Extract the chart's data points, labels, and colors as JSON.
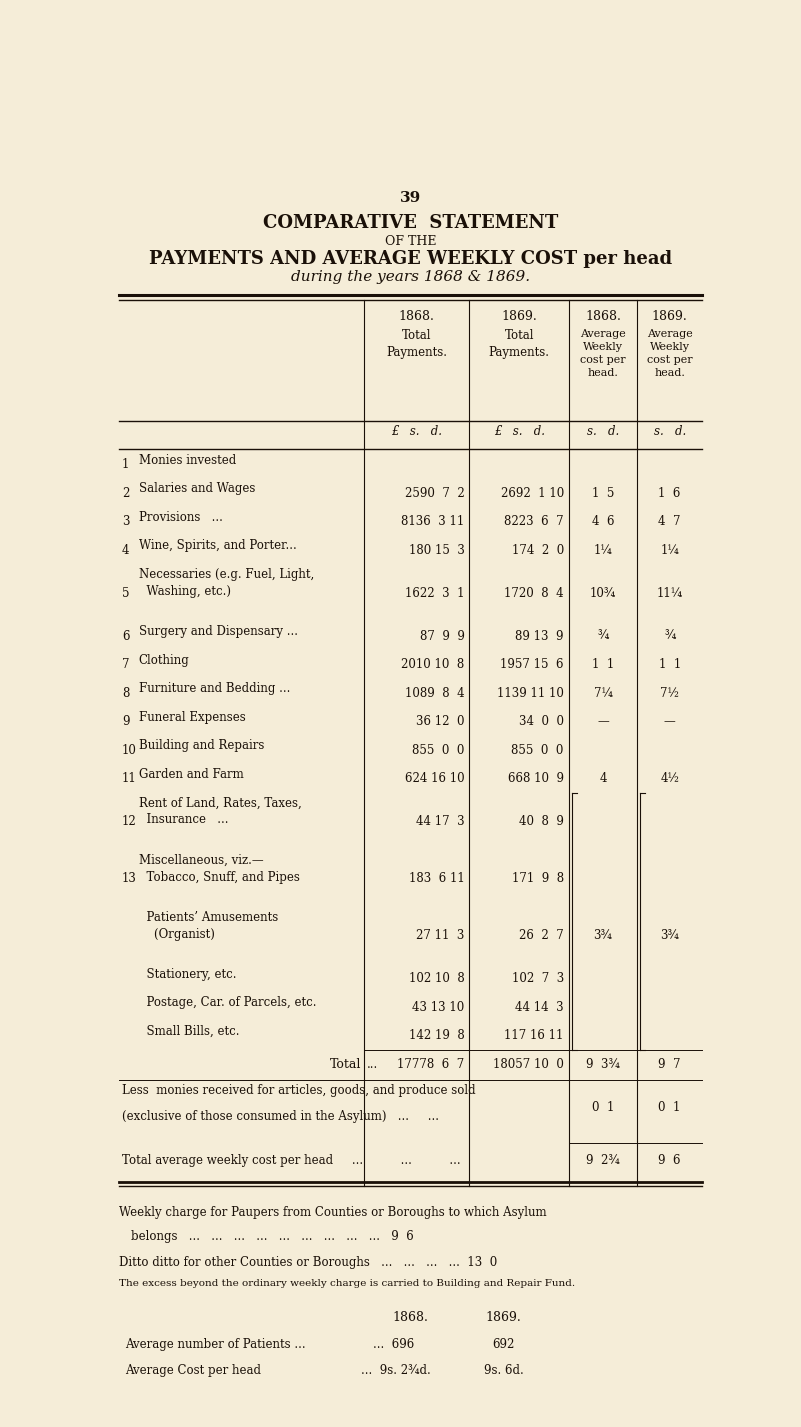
{
  "page_number": "39",
  "title1": "COMPARATIVE  STATEMENT",
  "title2": "OF THE",
  "title3": "PAYMENTS AND AVERAGE WEEKLY COST per head",
  "title4": "during the years 1868 & 1869.",
  "bg_color": "#f5edd8",
  "text_color": "#1a1008",
  "rows": [
    {
      "num": "1",
      "label": "Monies invested",
      "suffix": "...",
      "p1868": "",
      "p1869": "",
      "w1868": "",
      "w1869": "",
      "lines": 1
    },
    {
      "num": "2",
      "label": "Salaries and Wages",
      "suffix": "...",
      "p1868": "2590  7  2",
      "p1869": "2692  1 10",
      "w1868": "1  5",
      "w1869": "1  6",
      "lines": 1
    },
    {
      "num": "3",
      "label": "Provisions   ...",
      "suffix": "...",
      "p1868": "8136  3 11",
      "p1869": "8223  6  7",
      "w1868": "4  6",
      "w1869": "4  7",
      "lines": 1
    },
    {
      "num": "4",
      "label": "Wine, Spirits, and Porter...",
      "suffix": "",
      "p1868": "180 15  3",
      "p1869": "174  2  0",
      "w1868": "1¼",
      "w1869": "1¼",
      "lines": 1
    },
    {
      "num": "5",
      "label": "Necessaries (e.g. Fuel, Light,\n  Washing, etc.)",
      "suffix": "...",
      "p1868": "1622  3  1",
      "p1869": "1720  8  4",
      "w1868": "10¾",
      "w1869": "11¼",
      "lines": 2
    },
    {
      "num": "6",
      "label": "Surgery and Dispensary ...",
      "suffix": "",
      "p1868": "87  9  9",
      "p1869": "89 13  9",
      "w1868": "¾",
      "w1869": "¾",
      "lines": 1
    },
    {
      "num": "7",
      "label": "Clothing",
      "suffix": "...",
      "p1868": "2010 10  8",
      "p1869": "1957 15  6",
      "w1868": "1  1",
      "w1869": "1  1",
      "lines": 1
    },
    {
      "num": "8",
      "label": "Furniture and Bedding ...",
      "suffix": "",
      "p1868": "1089  8  4",
      "p1869": "1139 11 10",
      "w1868": "7¼",
      "w1869": "7½",
      "lines": 1
    },
    {
      "num": "9",
      "label": "Funeral Expenses",
      "suffix": "...",
      "p1868": "36 12  0",
      "p1869": "34  0  0",
      "w1868": "—",
      "w1869": "—",
      "lines": 1
    },
    {
      "num": "10",
      "label": "Building and Repairs",
      "suffix": "...",
      "p1868": "855  0  0",
      "p1869": "855  0  0",
      "w1868": "",
      "w1869": "",
      "lines": 1
    },
    {
      "num": "11",
      "label": "Garden and Farm",
      "suffix": "...",
      "p1868": "624 16 10",
      "p1869": "668 10  9",
      "w1868": "4",
      "w1869": "4½",
      "lines": 1
    },
    {
      "num": "12",
      "label": "Rent of Land, Rates, Taxes,\n  Insurance   ...",
      "suffix": "",
      "p1868": "44 17  3",
      "p1869": "40  8  9",
      "w1868": "",
      "w1869": "",
      "lines": 2
    },
    {
      "num": "13",
      "label": "Miscellaneous, viz.—\n  Tobacco, Snuff, and Pipes",
      "suffix": "",
      "p1868": "183  6 11",
      "p1869": "171  9  8",
      "w1868": "",
      "w1869": "",
      "lines": 2
    },
    {
      "num": "",
      "label": "  Patients’ Amusements\n    (Organist)",
      "suffix": "...",
      "p1868": "27 11  3",
      "p1869": "26  2  7",
      "w1868": "3¾",
      "w1869": "3¾",
      "lines": 2
    },
    {
      "num": "",
      "label": "  Stationery, etc.",
      "suffix": "...",
      "p1868": "102 10  8",
      "p1869": "102  7  3",
      "w1868": "",
      "w1869": "",
      "lines": 1
    },
    {
      "num": "",
      "label": "  Postage, Car. of Parcels, etc.",
      "suffix": "",
      "p1868": "43 13 10",
      "p1869": "44 14  3",
      "w1868": "",
      "w1869": "",
      "lines": 1
    },
    {
      "num": "",
      "label": "  Small Bills, etc.",
      "suffix": "...",
      "p1868": "142 19  8",
      "p1869": "117 16 11",
      "w1868": "",
      "w1869": "",
      "lines": 1
    }
  ],
  "total_row": {
    "p1868": "17778  6  7",
    "p1869": "18057 10  0",
    "w1868": "9  3¾",
    "w1869": "9  7"
  },
  "less_row": {
    "w1868": "0  1",
    "w1869": "0  1"
  },
  "net_row": {
    "w1868": "9  2¾",
    "w1869": "9  6"
  }
}
